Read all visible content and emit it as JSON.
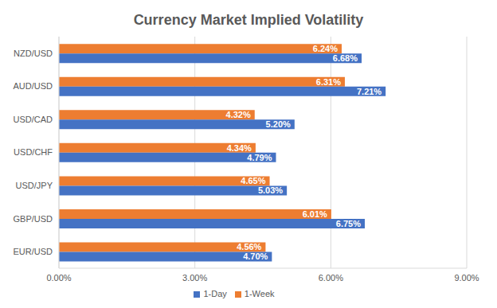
{
  "chart_data": {
    "type": "bar",
    "title": "Currency Market Implied Volatility",
    "orientation": "horizontal",
    "categories": [
      "NZD/USD",
      "AUD/USD",
      "USD/CAD",
      "USD/CHF",
      "USD/JPY",
      "GBP/USD",
      "EUR/USD"
    ],
    "series": [
      {
        "name": "1-Week",
        "color": "#ED7D31",
        "values": [
          6.24,
          6.31,
          4.32,
          4.34,
          4.65,
          6.01,
          4.56
        ],
        "value_labels": [
          "6.24%",
          "6.31%",
          "4.32%",
          "4.34%",
          "4.65%",
          "6.01%",
          "4.56%"
        ]
      },
      {
        "name": "1-Day",
        "color": "#4472C4",
        "values": [
          6.68,
          7.21,
          5.2,
          4.79,
          5.03,
          6.75,
          4.7
        ],
        "value_labels": [
          "6.68%",
          "7.21%",
          "5.20%",
          "4.79%",
          "5.03%",
          "6.75%",
          "4.70%"
        ]
      }
    ],
    "xlim": [
      0,
      9
    ],
    "xticks": [
      {
        "value": 0,
        "label": "0.00%"
      },
      {
        "value": 3,
        "label": "3.00%"
      },
      {
        "value": 6,
        "label": "6.00%"
      },
      {
        "value": 9,
        "label": "9.00%"
      }
    ],
    "grid": true,
    "legend": "bottom",
    "data_labels": true
  }
}
